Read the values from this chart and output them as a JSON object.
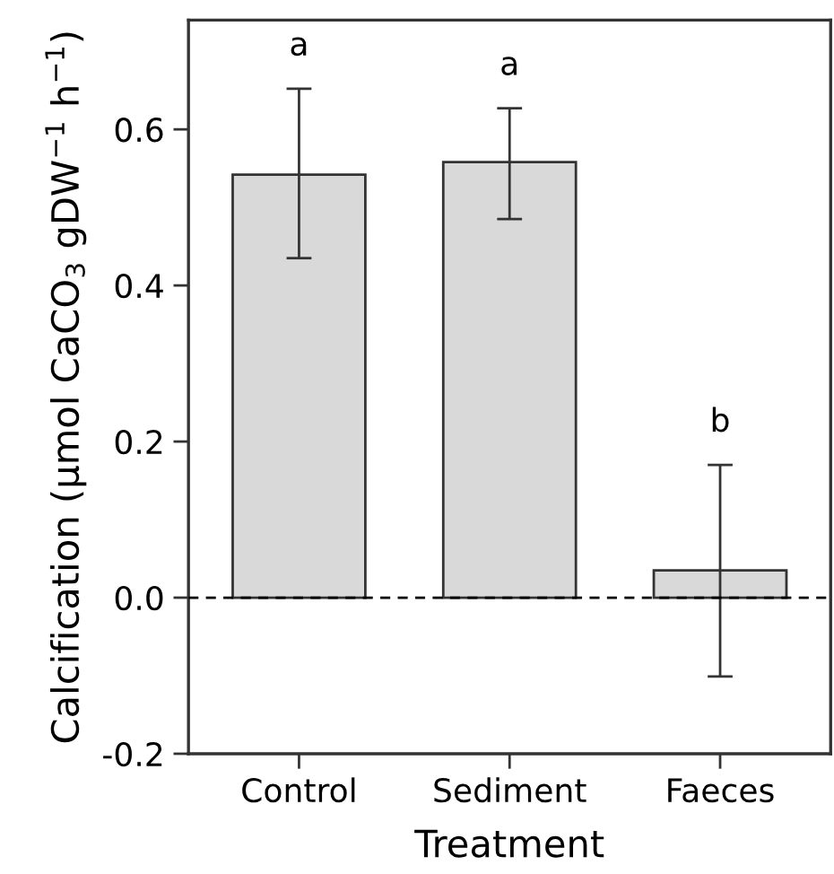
{
  "chart_data": {
    "type": "bar",
    "xlabel": "Treatment",
    "ylabel": "Calcification (μmol CaCO$_{3}$ gDW$^{−1}$ h$^{−1}$)",
    "categories": [
      "Control",
      "Sediment",
      "Faeces"
    ],
    "values": [
      0.542,
      0.558,
      0.035
    ],
    "errors": [
      [
        0.435,
        0.652
      ],
      [
        0.485,
        0.627
      ],
      [
        -0.101,
        0.17
      ]
    ],
    "color": "#d9d9d9",
    "ylim": [
      -0.2,
      0.74
    ],
    "yticks": [
      {
        "value": -0.2,
        "label": "-0.2"
      },
      {
        "value": 0.0,
        "label": "0.0"
      },
      0.2,
      0.4,
      0.6
    ],
    "ref_lines": [
      {
        "axis": "y",
        "value": 0,
        "line_style": "dashed",
        "color": "#000000"
      }
    ],
    "annotations": [
      "a",
      "a",
      "b"
    ],
    "grid": false,
    "legend": false
  }
}
